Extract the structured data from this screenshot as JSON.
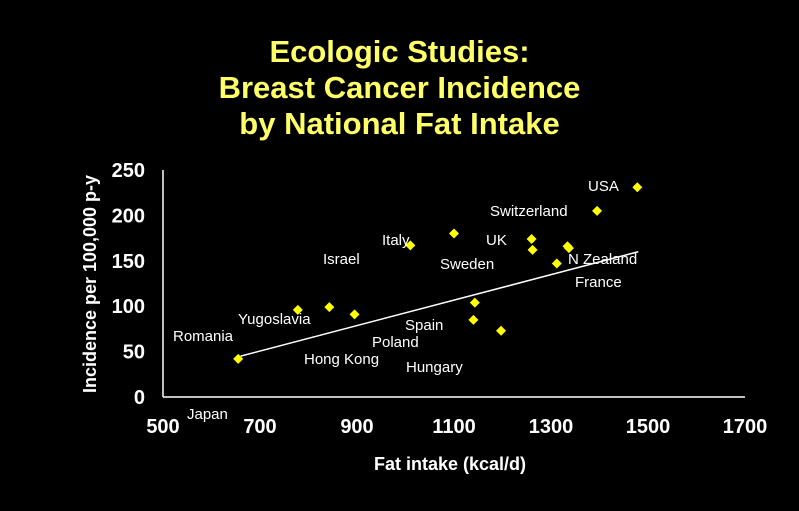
{
  "title": {
    "line1": "Ecologic Studies:",
    "line2": "Breast Cancer Incidence",
    "line3": "by National Fat Intake"
  },
  "colors": {
    "background": "#000000",
    "title": "#FFFF66",
    "marker": "#FFFF00",
    "text": "#FFFFFF"
  },
  "chart_data": {
    "type": "scatter",
    "title": "Ecologic Studies: Breast Cancer Incidence by National Fat Intake",
    "xlabel": "Fat intake (kcal/d)",
    "ylabel": "Incidence per 100,000 p-y",
    "xlim": [
      500,
      1700
    ],
    "ylim": [
      0,
      250
    ],
    "xticks": [
      "500",
      "700",
      "900",
      "1100",
      "1300",
      "1500",
      "1700"
    ],
    "yticks": [
      "0",
      "50",
      "100",
      "150",
      "200",
      "250"
    ],
    "grid": false,
    "legend": "none",
    "marker": "diamond",
    "points": [
      {
        "x": 655,
        "y": 42
      },
      {
        "x": 778,
        "y": 96
      },
      {
        "x": 843,
        "y": 99
      },
      {
        "x": 895,
        "y": 91
      },
      {
        "x": 1010,
        "y": 167
      },
      {
        "x": 1100,
        "y": 180
      },
      {
        "x": 1140,
        "y": 85
      },
      {
        "x": 1143,
        "y": 104
      },
      {
        "x": 1197,
        "y": 73
      },
      {
        "x": 1260,
        "y": 174
      },
      {
        "x": 1262,
        "y": 162
      },
      {
        "x": 1312,
        "y": 147
      },
      {
        "x": 1334,
        "y": 166
      },
      {
        "x": 1337,
        "y": 164
      },
      {
        "x": 1395,
        "y": 205
      },
      {
        "x": 1478,
        "y": 231
      }
    ],
    "labels": [
      "Japan",
      "Romania",
      "Yugoslavia",
      "Israel",
      "Italy",
      "UK",
      "Sweden",
      "Spain",
      "Poland",
      "Hong Kong",
      "Hungary",
      "Switzerland",
      "USA",
      "N Zealand",
      "France"
    ],
    "trendline": {
      "x": [
        660,
        1480
      ],
      "y": [
        45,
        160
      ]
    }
  }
}
